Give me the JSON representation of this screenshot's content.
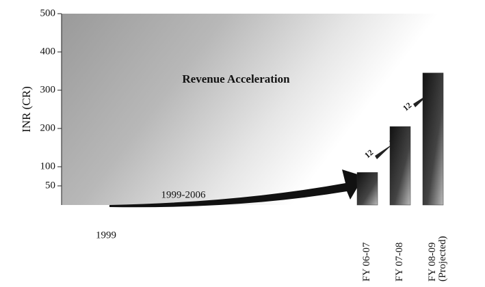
{
  "chart_data": {
    "type": "bar",
    "title": "Revenue Acceleration",
    "y_label": "INR (CR)",
    "categories": [
      "FY 06-07",
      "FY 07-08",
      "FY 08-09 (Projected)"
    ],
    "values": [
      85,
      205,
      345
    ],
    "color": "#2a2a2a",
    "ylim": [
      0,
      500
    ],
    "yticks": [
      50,
      100,
      200,
      300,
      400,
      500
    ],
    "annotations": [
      "1999",
      "1999-2006",
      "12",
      "12"
    ]
  }
}
